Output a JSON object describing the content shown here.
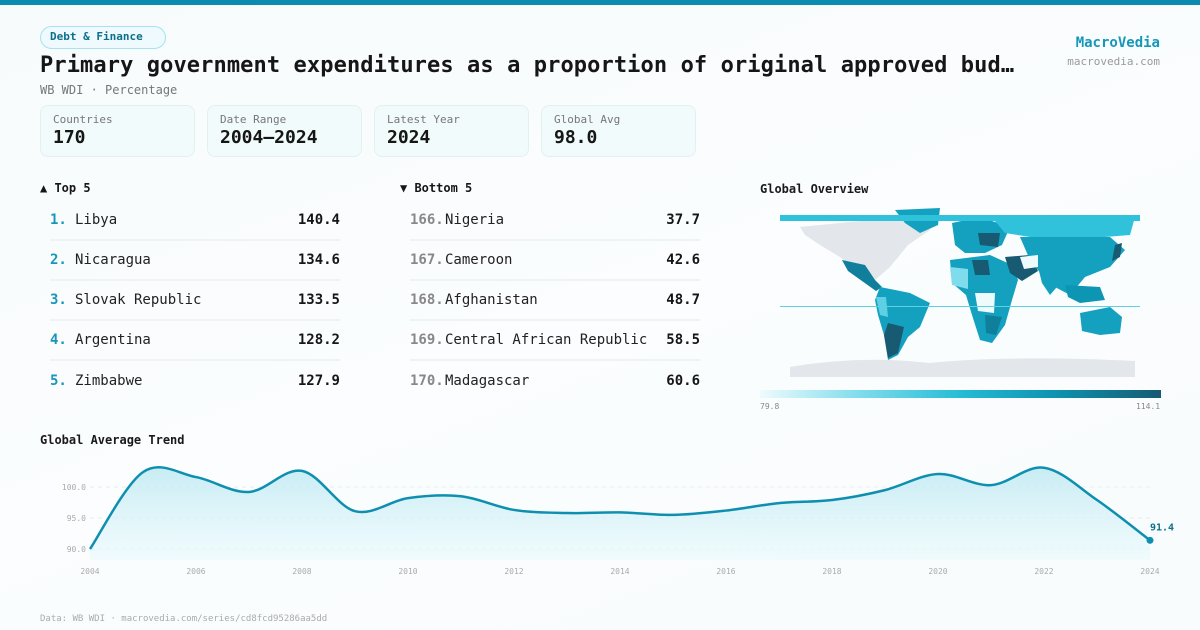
{
  "header": {
    "category": "Debt & Finance",
    "title": "Primary government expenditures as a proportion of original approved bud…",
    "subtitle": "WB WDI · Percentage",
    "brand": "MacroVedia",
    "brand_url": "macrovedia.com"
  },
  "stats": [
    {
      "label": "Countries",
      "value": "170"
    },
    {
      "label": "Date Range",
      "value": "2004–2024"
    },
    {
      "label": "Latest Year",
      "value": "2024"
    },
    {
      "label": "Global Avg",
      "value": "98.0"
    }
  ],
  "top5": {
    "heading": "▲ Top 5",
    "items": [
      {
        "rank": "1.",
        "name": "Libya",
        "value": "140.4"
      },
      {
        "rank": "2.",
        "name": "Nicaragua",
        "value": "134.6"
      },
      {
        "rank": "3.",
        "name": "Slovak Republic",
        "value": "133.5"
      },
      {
        "rank": "4.",
        "name": "Argentina",
        "value": "128.2"
      },
      {
        "rank": "5.",
        "name": "Zimbabwe",
        "value": "127.9"
      }
    ]
  },
  "bottom5": {
    "heading": "▼ Bottom 5",
    "items": [
      {
        "rank": "166.",
        "name": "Nigeria",
        "value": "37.7"
      },
      {
        "rank": "167.",
        "name": "Cameroon",
        "value": "42.6"
      },
      {
        "rank": "168.",
        "name": "Afghanistan",
        "value": "48.7"
      },
      {
        "rank": "169.",
        "name": "Central African Republic",
        "value": "58.5"
      },
      {
        "rank": "170.",
        "name": "Madagascar",
        "value": "60.6"
      }
    ]
  },
  "map": {
    "title": "Global Overview",
    "legend_min": "79.8",
    "legend_max": "114.1",
    "colors": {
      "no_data": "#e3e6ea",
      "low": "#eefbfd",
      "mid_low": "#7fdcec",
      "mid": "#26bcd6",
      "mid_high": "#0d96b3",
      "high": "#175a72"
    }
  },
  "chart_data": {
    "type": "area",
    "title": "Global Average Trend",
    "x": [
      2004,
      2005,
      2006,
      2007,
      2008,
      2009,
      2010,
      2011,
      2012,
      2013,
      2014,
      2015,
      2016,
      2017,
      2018,
      2019,
      2020,
      2021,
      2022,
      2023,
      2024
    ],
    "values": [
      90.0,
      102.4,
      101.6,
      99.2,
      102.6,
      96.1,
      98.2,
      98.5,
      96.3,
      95.8,
      95.9,
      95.5,
      96.2,
      97.4,
      97.9,
      99.5,
      102.1,
      100.3,
      103.1,
      97.9,
      91.4
    ],
    "xticks": [
      "2004",
      "2006",
      "2008",
      "2010",
      "2012",
      "2014",
      "2016",
      "2018",
      "2020",
      "2022",
      "2024"
    ],
    "yticks": [
      "90.0",
      "95.0",
      "100.0"
    ],
    "ylim": [
      88.5,
      104
    ],
    "last_label": "91.4",
    "grid": true,
    "line_color": "#0e8fb0"
  },
  "footer": "Data: WB WDI · macrovedia.com/series/cd8fcd95286aa5dd"
}
